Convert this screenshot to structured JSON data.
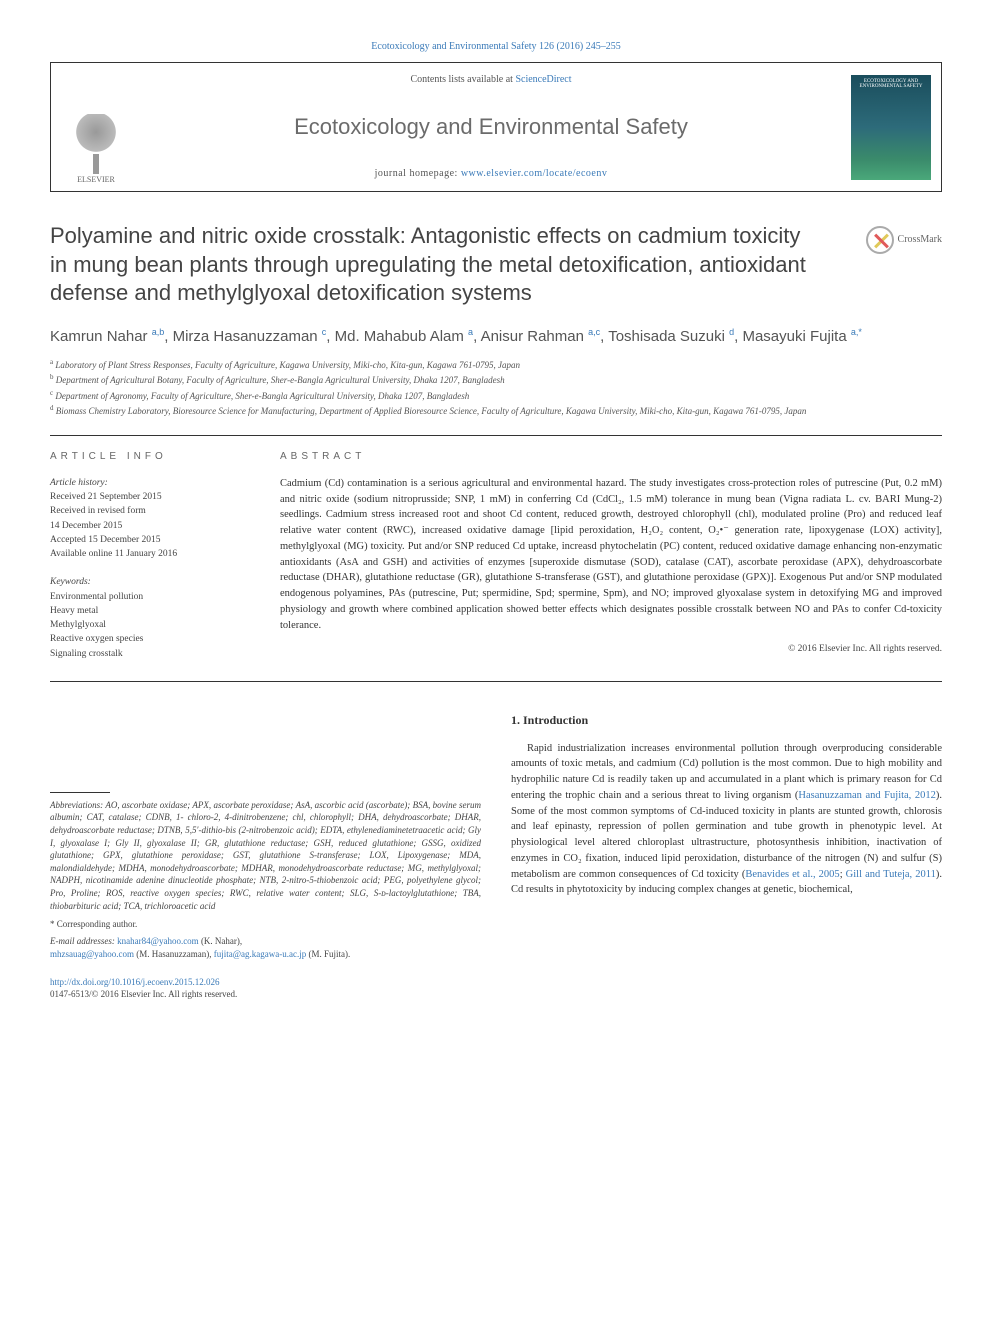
{
  "top_reference": "Ecotoxicology and Environmental Safety 126 (2016) 245–255",
  "header": {
    "contents_prefix": "Contents lists available at ",
    "contents_link": "ScienceDirect",
    "journal_name": "Ecotoxicology and Environmental Safety",
    "homepage_prefix": "journal homepage: ",
    "homepage_link": "www.elsevier.com/locate/ecoenv",
    "publisher": "ELSEVIER",
    "cover_text": "ECOTOXICOLOGY AND ENVIRONMENTAL SAFETY"
  },
  "crossmark_label": "CrossMark",
  "title": "Polyamine and nitric oxide crosstalk: Antagonistic effects on cadmium toxicity in mung bean plants through upregulating the metal detoxification, antioxidant defense and methylglyoxal detoxification systems",
  "authors_html": "Kamrun Nahar <sup>a,b</sup>, Mirza Hasanuzzaman <sup>c</sup>, Md. Mahabub Alam <sup>a</sup>, Anisur Rahman <sup>a,c</sup>, Toshisada Suzuki <sup>d</sup>, Masayuki Fujita <sup>a,*</sup>",
  "affiliations": [
    "a Laboratory of Plant Stress Responses, Faculty of Agriculture, Kagawa University, Miki-cho, Kita-gun, Kagawa 761-0795, Japan",
    "b Department of Agricultural Botany, Faculty of Agriculture, Sher-e-Bangla Agricultural University, Dhaka 1207, Bangladesh",
    "c Department of Agronomy, Faculty of Agriculture, Sher-e-Bangla Agricultural University, Dhaka 1207, Bangladesh",
    "d Biomass Chemistry Laboratory, Bioresource Science for Manufacturing, Department of Applied Bioresource Science, Faculty of Agriculture, Kagawa University, Miki-cho, Kita-gun, Kagawa 761-0795, Japan"
  ],
  "article_info_label": "ARTICLE INFO",
  "abstract_label": "ABSTRACT",
  "history": {
    "label": "Article history:",
    "lines": [
      "Received 21 September 2015",
      "Received in revised form",
      "14 December 2015",
      "Accepted 15 December 2015",
      "Available online 11 January 2016"
    ]
  },
  "keywords": {
    "label": "Keywords:",
    "items": [
      "Environmental pollution",
      "Heavy metal",
      "Methylglyoxal",
      "Reactive oxygen species",
      "Signaling crosstalk"
    ]
  },
  "abstract_text": "Cadmium (Cd) contamination is a serious agricultural and environmental hazard. The study investigates cross-protection roles of putrescine (Put, 0.2 mM) and nitric oxide (sodium nitroprusside; SNP, 1 mM) in conferring Cd (CdCl₂, 1.5 mM) tolerance in mung bean (Vigna radiata L. cv. BARI Mung-2) seedlings. Cadmium stress increased root and shoot Cd content, reduced growth, destroyed chlorophyll (chl), modulated proline (Pro) and reduced leaf relative water content (RWC), increased oxidative damage [lipid peroxidation, H₂O₂ content, O₂•⁻ generation rate, lipoxygenase (LOX) activity], methylglyoxal (MG) toxicity. Put and/or SNP reduced Cd uptake, increasd phytochelatin (PC) content, reduced oxidative damage enhancing non-enzymatic antioxidants (AsA and GSH) and activities of enzymes [superoxide dismutase (SOD), catalase (CAT), ascorbate peroxidase (APX), dehydroascorbate reductase (DHAR), glutathione reductase (GR), glutathione S-transferase (GST), and glutathione peroxidase (GPX)]. Exogenous Put and/or SNP modulated endogenous polyamines, PAs (putrescine, Put; spermidine, Spd; spermine, Spm), and NO; improved glyoxalase system in detoxifying MG and improved physiology and growth where combined application showed better effects which designates possible crosstalk between NO and PAs to confer Cd-toxicity tolerance.",
  "copyright": "© 2016 Elsevier Inc. All rights reserved.",
  "abbreviations": {
    "label": "Abbreviations:",
    "text": " AO, ascorbate oxidase; APX, ascorbate peroxidase; AsA, ascorbic acid (ascorbate); BSA, bovine serum albumin; CAT, catalase; CDNB, 1- chloro-2, 4-dinitrobenzene; chl, chlorophyll; DHA, dehydroascorbate; DHAR, dehydroascorbate reductase; DTNB, 5,5′-dithio-bis (2-nitrobenzoic acid); EDTA, ethylenediaminetetraacetic acid; Gly I, glyoxalase I; Gly II, glyoxalase II; GR, glutathione reductase; GSH, reduced glutathione; GSSG, oxidized glutathione; GPX, glutathione peroxidase; GST, glutathione S-transferase; LOX, Lipoxygenase; MDA, malondialdehyde; MDHA, monodehydroascorbate; MDHAR, monodehydroascorbate reductase; MG, methylglyoxal; NADPH, nicotinamide adenine dinucleotide phosphate; NTB, 2-nitro-5-thiobenzoic acid; PEG, polyethylene glycol; Pro, Proline; ROS, reactive oxygen species; RWC, relative water content; SLG, S-ᴅ-lactoylglutathione; TBA, thiobarbituric acid; TCA, trichloroacetic acid"
  },
  "corresponding": "* Corresponding author.",
  "emails": {
    "prefix": "E-mail addresses: ",
    "items": [
      {
        "email": "knahar84@yahoo.com",
        "name": " (K. Nahar),"
      },
      {
        "email": "mhzsauag@yahoo.com",
        "name": " (M. Hasanuzzaman), "
      },
      {
        "email": "fujita@ag.kagawa-u.ac.jp",
        "name": " (M. Fujita)."
      }
    ]
  },
  "intro": {
    "heading": "1. Introduction",
    "paragraph": "Rapid industrialization increases environmental pollution through overproducing considerable amounts of toxic metals, and cadmium (Cd) pollution is the most common. Due to high mobility and hydrophilic nature Cd is readily taken up and accumulated in a plant which is primary reason for Cd entering the trophic chain and a serious threat to living organism (Hasanuzzaman and Fujita, 2012). Some of the most common symptoms of Cd-induced toxicity in plants are stunted growth, chlorosis and leaf epinasty, repression of pollen germination and tube growth in phenotypic level. At physiological level altered chloroplast ultrastructure, photosynthesis inhibition, inactivation of enzymes in CO₂ fixation, induced lipid peroxidation, disturbance of the nitrogen (N) and sulfur (S) metabolism are common consequences of Cd toxicity (Benavides et al., 2005; Gill and Tuteja, 2011). Cd results in phytotoxicity by inducing complex changes at genetic, biochemical,"
  },
  "doi": {
    "link": "http://dx.doi.org/10.1016/j.ecoenv.2015.12.026",
    "issn": "0147-6513/© 2016 Elsevier Inc. All rights reserved."
  },
  "colors": {
    "link": "#3a7ab8",
    "text": "#333333",
    "muted": "#555555",
    "border": "#333333"
  }
}
